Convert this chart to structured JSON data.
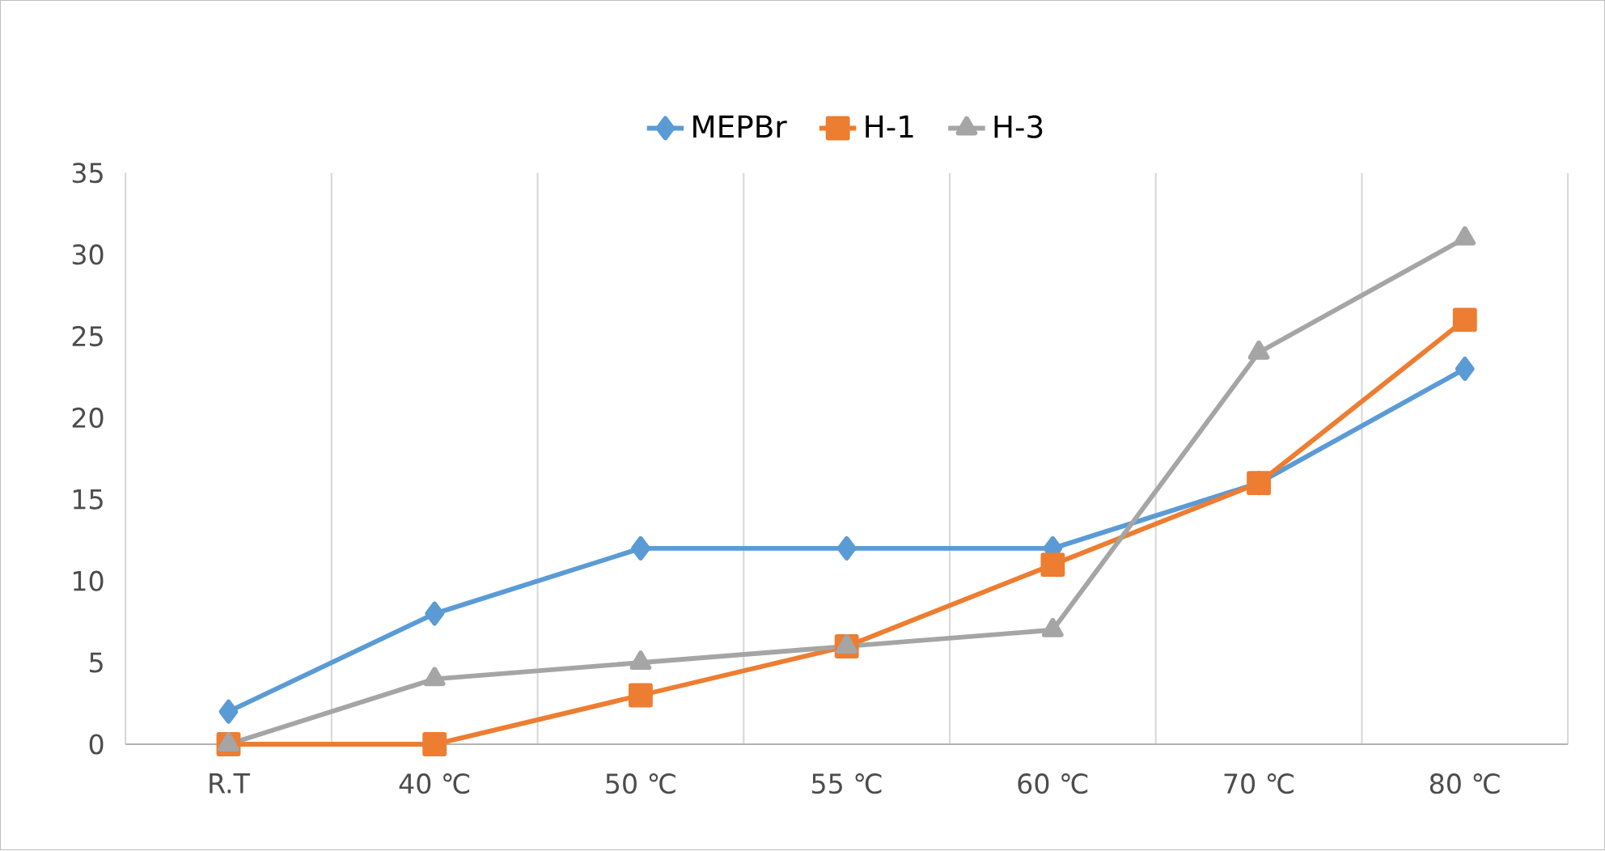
{
  "chart_data": {
    "type": "line",
    "categories": [
      "R.T",
      "40 ℃",
      "50 ℃",
      "55 ℃",
      "60 ℃",
      "70 ℃",
      "80 ℃"
    ],
    "series": [
      {
        "name": "MEPBr",
        "color": "#5b9bd5",
        "marker": "diamond",
        "values": [
          2,
          8,
          12,
          12,
          12,
          16,
          23
        ]
      },
      {
        "name": "H-1",
        "color": "#ed7d31",
        "marker": "square",
        "values": [
          0,
          0,
          3,
          6,
          11,
          16,
          26
        ]
      },
      {
        "name": "H-3",
        "color": "#a5a5a5",
        "marker": "triangle",
        "values": [
          0,
          4,
          5,
          6,
          7,
          24,
          31
        ]
      }
    ],
    "ylim": [
      0,
      35
    ],
    "yticks": [
      0,
      5,
      10,
      15,
      20,
      25,
      30,
      35
    ],
    "grid": "x",
    "legend": "top",
    "line_style": "solid"
  }
}
